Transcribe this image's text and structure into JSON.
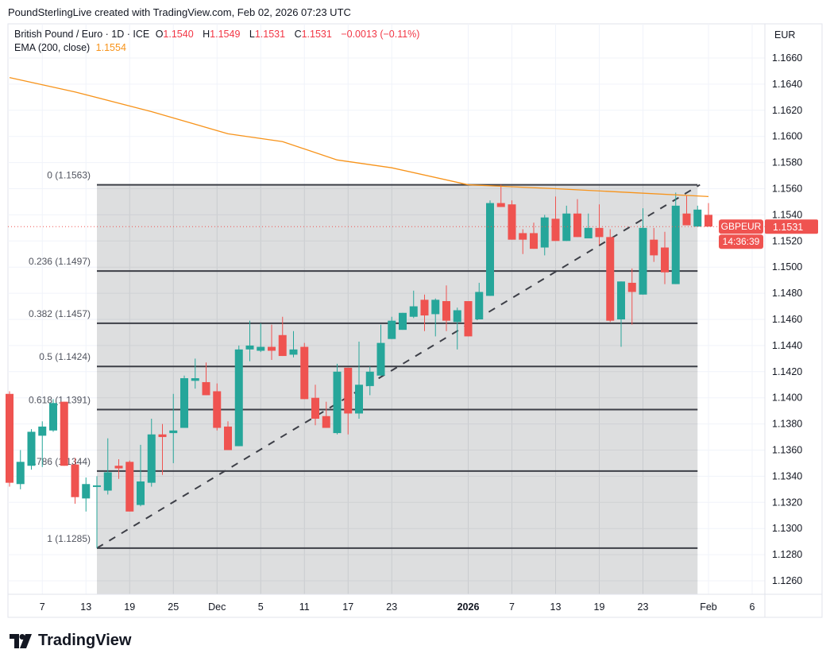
{
  "credit": "PoundSterlingLive created with TradingView.com, Feb 02, 2026 07:23 UTC",
  "legend": {
    "symbol": "British Pound / Euro · 1D · ICE",
    "o_label": "O",
    "o": "1.1540",
    "h_label": "H",
    "h": "1.1549",
    "l_label": "L",
    "l": "1.1531",
    "c_label": "C",
    "c": "1.1531",
    "change": "−0.0013 (−0.11%)",
    "ema_label": "EMA (200, close)",
    "ema_value": "1.1554"
  },
  "axis_currency": "EUR",
  "price_tag": {
    "symbol": "GBPEUR",
    "price": "1.1531",
    "countdown": "14:36:39"
  },
  "branding": "TradingView",
  "colors": {
    "up": "#26a69a",
    "down": "#ef5350",
    "ema": "#f7931a",
    "fib_fill": "#d9dadc",
    "fib_line": "#3d3f47"
  },
  "chart_data": {
    "type": "candlestick",
    "title": "British Pound / Euro · 1D · ICE",
    "ylim": [
      1.125,
      1.1675
    ],
    "y_ticks": [
      "1.1660",
      "1.1640",
      "1.1620",
      "1.1600",
      "1.1580",
      "1.1560",
      "1.1540",
      "1.1520",
      "1.1500",
      "1.1480",
      "1.1460",
      "1.1440",
      "1.1420",
      "1.1400",
      "1.1380",
      "1.1360",
      "1.1340",
      "1.1320",
      "1.1300",
      "1.1280",
      "1.1260"
    ],
    "x_ticks": [
      {
        "label": "7",
        "i": 3
      },
      {
        "label": "13",
        "i": 7
      },
      {
        "label": "19",
        "i": 11
      },
      {
        "label": "25",
        "i": 15
      },
      {
        "label": "Dec",
        "i": 19
      },
      {
        "label": "5",
        "i": 23
      },
      {
        "label": "11",
        "i": 27
      },
      {
        "label": "17",
        "i": 31
      },
      {
        "label": "23",
        "i": 35
      },
      {
        "label": "2026",
        "i": 42,
        "bold": true
      },
      {
        "label": "7",
        "i": 46
      },
      {
        "label": "13",
        "i": 50
      },
      {
        "label": "19",
        "i": 54
      },
      {
        "label": "23",
        "i": 58
      },
      {
        "label": "Feb",
        "i": 64
      },
      {
        "label": "6",
        "i": 68
      }
    ],
    "candles": [
      [
        1.1403,
        1.1405,
        1.1332,
        1.1335
      ],
      [
        1.1334,
        1.136,
        1.133,
        1.1351
      ],
      [
        1.1348,
        1.1376,
        1.1345,
        1.1374
      ],
      [
        1.1371,
        1.1382,
        1.1347,
        1.1378
      ],
      [
        1.1375,
        1.1399,
        1.1374,
        1.1396
      ],
      [
        1.1397,
        1.1397,
        1.1348,
        1.1348
      ],
      [
        1.1349,
        1.1354,
        1.1319,
        1.1324
      ],
      [
        1.1323,
        1.1339,
        1.1313,
        1.1334
      ],
      [
        1.1332,
        1.134,
        1.1285,
        1.1333
      ],
      [
        1.1329,
        1.1369,
        1.1326,
        1.1343
      ],
      [
        1.1348,
        1.1353,
        1.1338,
        1.1346
      ],
      [
        1.1351,
        1.1352,
        1.1313,
        1.1313
      ],
      [
        1.1318,
        1.1364,
        1.1317,
        1.1336
      ],
      [
        1.1335,
        1.1384,
        1.1332,
        1.1372
      ],
      [
        1.1372,
        1.138,
        1.1341,
        1.137
      ],
      [
        1.1373,
        1.1403,
        1.135,
        1.1375
      ],
      [
        1.1377,
        1.1417,
        1.1377,
        1.1415
      ],
      [
        1.1413,
        1.143,
        1.1407,
        1.1415
      ],
      [
        1.1412,
        1.1427,
        1.1402,
        1.1402
      ],
      [
        1.1405,
        1.1411,
        1.1375,
        1.1377
      ],
      [
        1.1378,
        1.1382,
        1.136,
        1.136
      ],
      [
        1.1363,
        1.144,
        1.1363,
        1.1437
      ],
      [
        1.1437,
        1.1459,
        1.1428,
        1.144
      ],
      [
        1.1436,
        1.1457,
        1.1435,
        1.1439
      ],
      [
        1.1439,
        1.1456,
        1.1429,
        1.1436
      ],
      [
        1.1448,
        1.1462,
        1.1432,
        1.1432
      ],
      [
        1.1433,
        1.1451,
        1.1431,
        1.1437
      ],
      [
        1.1439,
        1.1442,
        1.1399,
        1.1399
      ],
      [
        1.14,
        1.141,
        1.1379,
        1.1384
      ],
      [
        1.1386,
        1.1397,
        1.1377,
        1.1377
      ],
      [
        1.1373,
        1.1426,
        1.1372,
        1.142
      ],
      [
        1.1423,
        1.1423,
        1.1372,
        1.1388
      ],
      [
        1.1388,
        1.1443,
        1.1384,
        1.141
      ],
      [
        1.1409,
        1.1424,
        1.1402,
        1.142
      ],
      [
        1.1417,
        1.1456,
        1.1417,
        1.1442
      ],
      [
        1.1445,
        1.1462,
        1.1445,
        1.1459
      ],
      [
        1.1452,
        1.1465,
        1.1452,
        1.1465
      ],
      [
        1.1462,
        1.1482,
        1.1461,
        1.147
      ],
      [
        1.1475,
        1.1479,
        1.1451,
        1.1463
      ],
      [
        1.1464,
        1.1476,
        1.1447,
        1.1475
      ],
      [
        1.1474,
        1.1486,
        1.1451,
        1.1459
      ],
      [
        1.1458,
        1.1469,
        1.1437,
        1.1467
      ],
      [
        1.1474,
        1.1474,
        1.1447,
        1.1447
      ],
      [
        1.146,
        1.1488,
        1.146,
        1.1481
      ],
      [
        1.1478,
        1.1551,
        1.1478,
        1.1549
      ],
      [
        1.1549,
        1.1563,
        1.1546,
        1.1546
      ],
      [
        1.1548,
        1.1551,
        1.1521,
        1.1521
      ],
      [
        1.1526,
        1.1529,
        1.151,
        1.1521
      ],
      [
        1.1526,
        1.1534,
        1.1514,
        1.1514
      ],
      [
        1.1515,
        1.154,
        1.1509,
        1.1538
      ],
      [
        1.1537,
        1.1554,
        1.152,
        1.152
      ],
      [
        1.152,
        1.1547,
        1.152,
        1.1541
      ],
      [
        1.1541,
        1.1552,
        1.1523,
        1.1523
      ],
      [
        1.1522,
        1.1541,
        1.1522,
        1.153
      ],
      [
        1.153,
        1.1548,
        1.1517,
        1.1523
      ],
      [
        1.1523,
        1.1529,
        1.1458,
        1.1459
      ],
      [
        1.146,
        1.1489,
        1.1439,
        1.1489
      ],
      [
        1.1488,
        1.1499,
        1.1456,
        1.1481
      ],
      [
        1.1479,
        1.1545,
        1.1479,
        1.153
      ],
      [
        1.1521,
        1.153,
        1.1504,
        1.1509
      ],
      [
        1.1515,
        1.1527,
        1.1487,
        1.1496
      ],
      [
        1.1487,
        1.1557,
        1.1487,
        1.1547
      ],
      [
        1.1541,
        1.1555,
        1.1532,
        1.1532
      ],
      [
        1.1531,
        1.1547,
        1.1531,
        1.1544
      ],
      [
        1.154,
        1.1549,
        1.1531,
        1.1531
      ]
    ],
    "candle_fields": [
      "open",
      "high",
      "low",
      "close"
    ],
    "ema": {
      "name": "EMA (200, close)",
      "points": [
        [
          0,
          1.1645
        ],
        [
          6,
          1.1634
        ],
        [
          13,
          1.1619
        ],
        [
          20,
          1.1602
        ],
        [
          25,
          1.1596
        ],
        [
          30,
          1.1582
        ],
        [
          35,
          1.1576
        ],
        [
          42,
          1.1563
        ],
        [
          50,
          1.156
        ],
        [
          57,
          1.1557
        ],
        [
          64,
          1.1554
        ]
      ]
    },
    "fib": {
      "start_i": 8,
      "end_i": 63,
      "levels": [
        {
          "label": "0 (1.1563)",
          "price": 1.1563
        },
        {
          "label": "0.236 (1.1497)",
          "price": 1.1497
        },
        {
          "label": "0.382 (1.1457)",
          "price": 1.1457
        },
        {
          "label": "0.5 (1.1424)",
          "price": 1.1424
        },
        {
          "label": "0.618 (1.1391)",
          "price": 1.1391
        },
        {
          "label": "0.786 (1.1344)",
          "price": 1.1344
        },
        {
          "label": "1 (1.1285)",
          "price": 1.1285
        }
      ]
    },
    "trendline": {
      "from": [
        8,
        1.1285
      ],
      "to": [
        63,
        1.1563
      ]
    },
    "last_price": 1.1531
  }
}
